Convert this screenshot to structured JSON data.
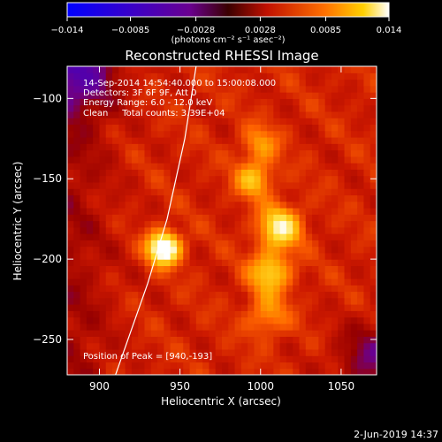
{
  "chart_data": {
    "type": "heatmap",
    "title": "Reconstructed RHESSI Image",
    "xlabel": "Heliocentric X (arcsec)",
    "ylabel": "Heliocentric Y (arcsec)",
    "xlim": [
      880,
      1072
    ],
    "ylim": [
      -272,
      -80
    ],
    "x_ticks": [
      900,
      950,
      1000,
      1050
    ],
    "y_ticks": [
      -100,
      -150,
      -200,
      -250
    ],
    "colorbar": {
      "range": [
        -0.014,
        0.014
      ],
      "tick_values": [
        -0.014,
        -0.0085,
        -0.0028,
        0.0028,
        0.0085,
        0.014
      ],
      "tick_labels": [
        "−0.014",
        "−0.0085",
        "−0.0028",
        "0.0028",
        "0.0085",
        "0.014"
      ],
      "units": "(photons cm⁻² s⁻¹ asec⁻²)"
    },
    "info_lines": [
      "14-Sep-2014 14:54:40.000 to 15:00:08.000",
      "Detectors: 3F 6F 9F, Att 0",
      "Energy Range: 6.0 - 12.0 keV",
      "Clean     Total counts: 3.39E+04"
    ],
    "peak_label": "Position of Peak = [940,-193]",
    "peak": {
      "x": 940,
      "y": -193
    },
    "sources": [
      {
        "x": 940,
        "y": -193,
        "amp": 0.014,
        "sigma": 7
      },
      {
        "x": 1012,
        "y": -180,
        "amp": 0.0095,
        "sigma": 9
      },
      {
        "x": 1006,
        "y": -208,
        "amp": 0.0075,
        "sigma": 9
      },
      {
        "x": 996,
        "y": -150,
        "amp": 0.0065,
        "sigma": 8
      },
      {
        "x": 1000,
        "y": -128,
        "amp": 0.0045,
        "sigma": 8
      },
      {
        "x": 1004,
        "y": -235,
        "amp": 0.0045,
        "sigma": 9
      }
    ],
    "limb_curve": [
      {
        "x": 910,
        "y": -272
      },
      {
        "x": 930,
        "y": -215
      },
      {
        "x": 942,
        "y": -175
      },
      {
        "x": 953,
        "y": -125
      },
      {
        "x": 960,
        "y": -80
      }
    ],
    "footer_date": "2-Jun-2019 14:37"
  }
}
